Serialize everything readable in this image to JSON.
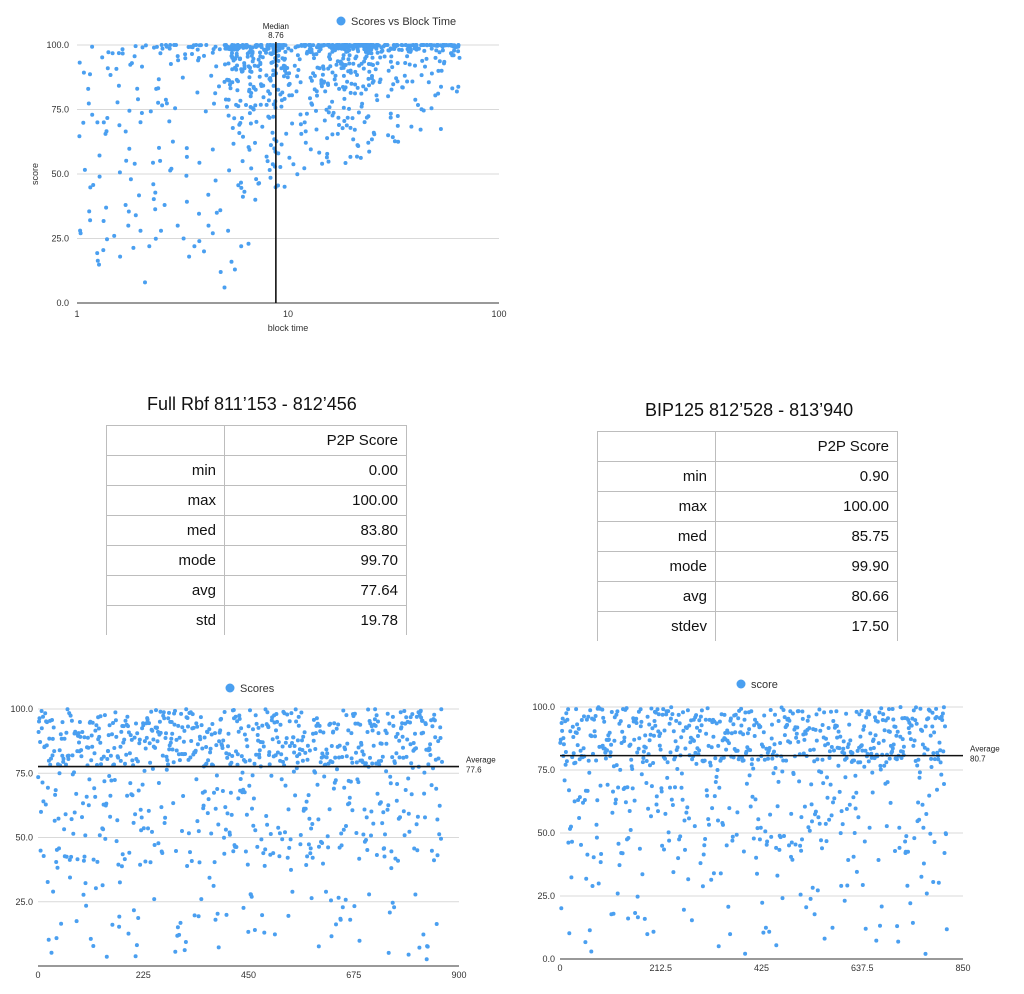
{
  "chart_data": [
    {
      "id": "top",
      "type": "scatter",
      "legend": "Scores vs Block Time",
      "legend_position": "top",
      "xlabel": "block time",
      "ylabel": "score",
      "x_scale": "log",
      "xlim": [
        1,
        100
      ],
      "ylim": [
        0,
        100
      ],
      "x_ticks": [
        "1",
        "10",
        "100"
      ],
      "y_ticks": [
        "0.0",
        "25.0",
        "50.0",
        "75.0",
        "100.0"
      ],
      "grid": true,
      "color": "#4a9ff0",
      "annotation": {
        "label": "Median",
        "value": "8.76",
        "x": 8.76
      },
      "points_count": 900,
      "points": [
        [
          1.04,
          27
        ],
        [
          1.13,
          83
        ],
        [
          1.18,
          73
        ],
        [
          1.25,
          70
        ],
        [
          1.34,
          70
        ],
        [
          1.4,
          91
        ],
        [
          1.5,
          26
        ],
        [
          1.6,
          18
        ],
        [
          1.7,
          38
        ],
        [
          1.75,
          30
        ],
        [
          1.8,
          48
        ],
        [
          1.9,
          34
        ],
        [
          2.0,
          28
        ],
        [
          2.1,
          8
        ],
        [
          2.2,
          22
        ],
        [
          2.3,
          46
        ],
        [
          2.5,
          28
        ],
        [
          2.6,
          38
        ],
        [
          2.8,
          52
        ],
        [
          3.0,
          30
        ],
        [
          3.2,
          25
        ],
        [
          3.4,
          18
        ],
        [
          3.6,
          22
        ],
        [
          3.8,
          24
        ],
        [
          4.0,
          20
        ],
        [
          4.2,
          30
        ],
        [
          4.4,
          27
        ],
        [
          4.6,
          35
        ],
        [
          4.8,
          12
        ],
        [
          5.0,
          6
        ],
        [
          5.2,
          28
        ],
        [
          5.4,
          16
        ],
        [
          5.6,
          13
        ],
        [
          6.0,
          22
        ],
        [
          6.5,
          23
        ],
        [
          7.0,
          40
        ],
        [
          8.0,
          55
        ],
        [
          9.0,
          58
        ],
        [
          12,
          70
        ],
        [
          15,
          82
        ],
        [
          20,
          85
        ],
        [
          25,
          88
        ],
        [
          30,
          90
        ],
        [
          40,
          92
        ],
        [
          50,
          95
        ],
        [
          60,
          96
        ],
        [
          65,
          95
        ]
      ]
    },
    {
      "id": "bottom-left",
      "type": "scatter",
      "legend": "Scores",
      "legend_position": "top",
      "xlim": [
        0,
        900
      ],
      "ylim": [
        0,
        100
      ],
      "x_ticks": [
        "0",
        "225",
        "450",
        "675",
        "900"
      ],
      "y_ticks": [
        "25.0",
        "50.0",
        "75.0",
        "100.0"
      ],
      "grid": true,
      "color": "#4a9ff0",
      "reference_line": {
        "label": "Average",
        "value": "77.6",
        "y": 77.6
      },
      "points_count": 860
    },
    {
      "id": "bottom-right",
      "type": "scatter",
      "legend": "score",
      "legend_position": "top",
      "xlim": [
        0,
        850
      ],
      "ylim": [
        0,
        100
      ],
      "x_ticks": [
        "0",
        "212.5",
        "425",
        "637.5",
        "850"
      ],
      "y_ticks": [
        "0.0",
        "25.0",
        "50.0",
        "75.0",
        "100.0"
      ],
      "grid": true,
      "color": "#4a9ff0",
      "reference_line": {
        "label": "Average",
        "value": "80.7",
        "y": 80.7
      },
      "points_count": 800
    }
  ],
  "tables": [
    {
      "title": "Full Rbf  811’153 - 812’456",
      "header": [
        "",
        "P2P Score"
      ],
      "rows": [
        [
          "min",
          "0.00"
        ],
        [
          "max",
          "100.00"
        ],
        [
          "med",
          "83.80"
        ],
        [
          "mode",
          "99.70"
        ],
        [
          "avg",
          "77.64"
        ],
        [
          "std",
          "19.78"
        ]
      ]
    },
    {
      "title": "BIP125 812’528 - 813’940",
      "header": [
        "",
        "P2P Score"
      ],
      "rows": [
        [
          "min",
          "0.90"
        ],
        [
          "max",
          "100.00"
        ],
        [
          "med",
          "85.75"
        ],
        [
          "mode",
          "99.90"
        ],
        [
          "avg",
          "80.66"
        ],
        [
          "stdev",
          "17.50"
        ]
      ]
    }
  ]
}
